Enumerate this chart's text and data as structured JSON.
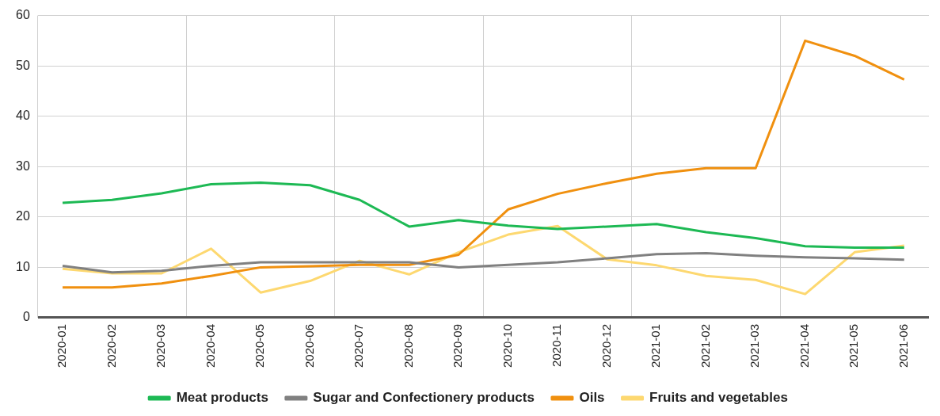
{
  "chart_data": {
    "type": "line",
    "categories": [
      "2020-01",
      "2020-02",
      "2020-03",
      "2020-04",
      "2020-05",
      "2020-06",
      "2020-07",
      "2020-08",
      "2020-09",
      "2020-10",
      "2020-11",
      "2020-12",
      "2021-01",
      "2021-02",
      "2021-03",
      "2021-04",
      "2021-05",
      "2021-06"
    ],
    "series": [
      {
        "name": "Meat products",
        "color": "#1db954",
        "values": [
          22.8,
          23.4,
          24.7,
          26.5,
          26.8,
          26.3,
          23.4,
          18.1,
          19.4,
          18.3,
          17.6,
          18.1,
          18.6,
          17.0,
          15.8,
          14.2,
          13.9,
          13.9
        ]
      },
      {
        "name": "Sugar and Confectionery products",
        "color": "#808080",
        "values": [
          10.3,
          9.0,
          9.3,
          10.3,
          11.0,
          11.0,
          11.0,
          11.0,
          10.0,
          10.5,
          11.0,
          11.8,
          12.6,
          12.8,
          12.3,
          12.0,
          11.8,
          11.5
        ]
      },
      {
        "name": "Oils",
        "color": "#f0900f",
        "values": [
          6.0,
          6.0,
          6.8,
          8.3,
          10.0,
          10.2,
          10.5,
          10.5,
          12.5,
          21.5,
          24.6,
          26.7,
          28.6,
          29.7,
          29.7,
          55.0,
          52.0,
          47.3
        ]
      },
      {
        "name": "Fruits and vegetables",
        "color": "#fdd870",
        "values": [
          9.7,
          8.8,
          8.8,
          13.7,
          5.0,
          7.3,
          11.3,
          8.6,
          13.0,
          16.5,
          18.2,
          11.6,
          10.4,
          8.3,
          7.5,
          4.7,
          13.0,
          14.3
        ]
      }
    ],
    "ylim": [
      0,
      60
    ],
    "yticks": [
      0,
      10,
      20,
      30,
      40,
      50,
      60
    ],
    "grid": true,
    "legend": "bottom",
    "marker": "none",
    "line_style": "solid"
  }
}
